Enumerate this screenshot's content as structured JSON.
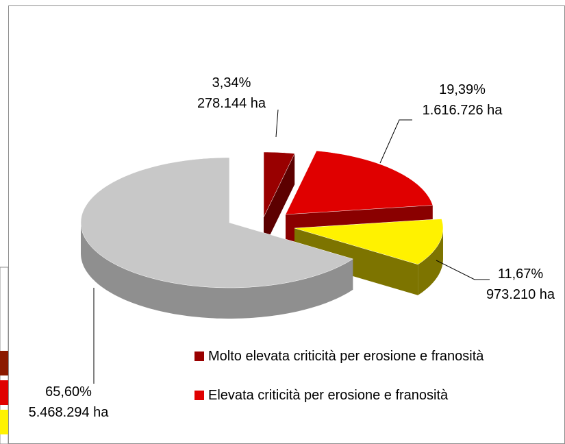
{
  "chart_data": {
    "type": "pie3d",
    "categories": [
      "Molto elevata criticità per erosione e franosità",
      "Elevata criticità per erosione e franosità",
      null,
      null
    ],
    "values": [
      3.34,
      19.39,
      11.67,
      65.6
    ],
    "value_labels": [
      "3,34%",
      "19,39%",
      "11,67%",
      "65,60%"
    ],
    "hectares": [
      278144,
      1616726,
      973210,
      5468294
    ],
    "hectare_labels": [
      "278.144 ha",
      "1.616.726 ha",
      "973.210 ha",
      "5.468.294 ha"
    ],
    "colors": [
      "#990000",
      "#e00000",
      "#fff200",
      "#c8c8c8"
    ],
    "side_colors": [
      "#5c0000",
      "#8a0000",
      "#7d7400",
      "#8f8f8f"
    ],
    "legend": "bottom"
  }
}
